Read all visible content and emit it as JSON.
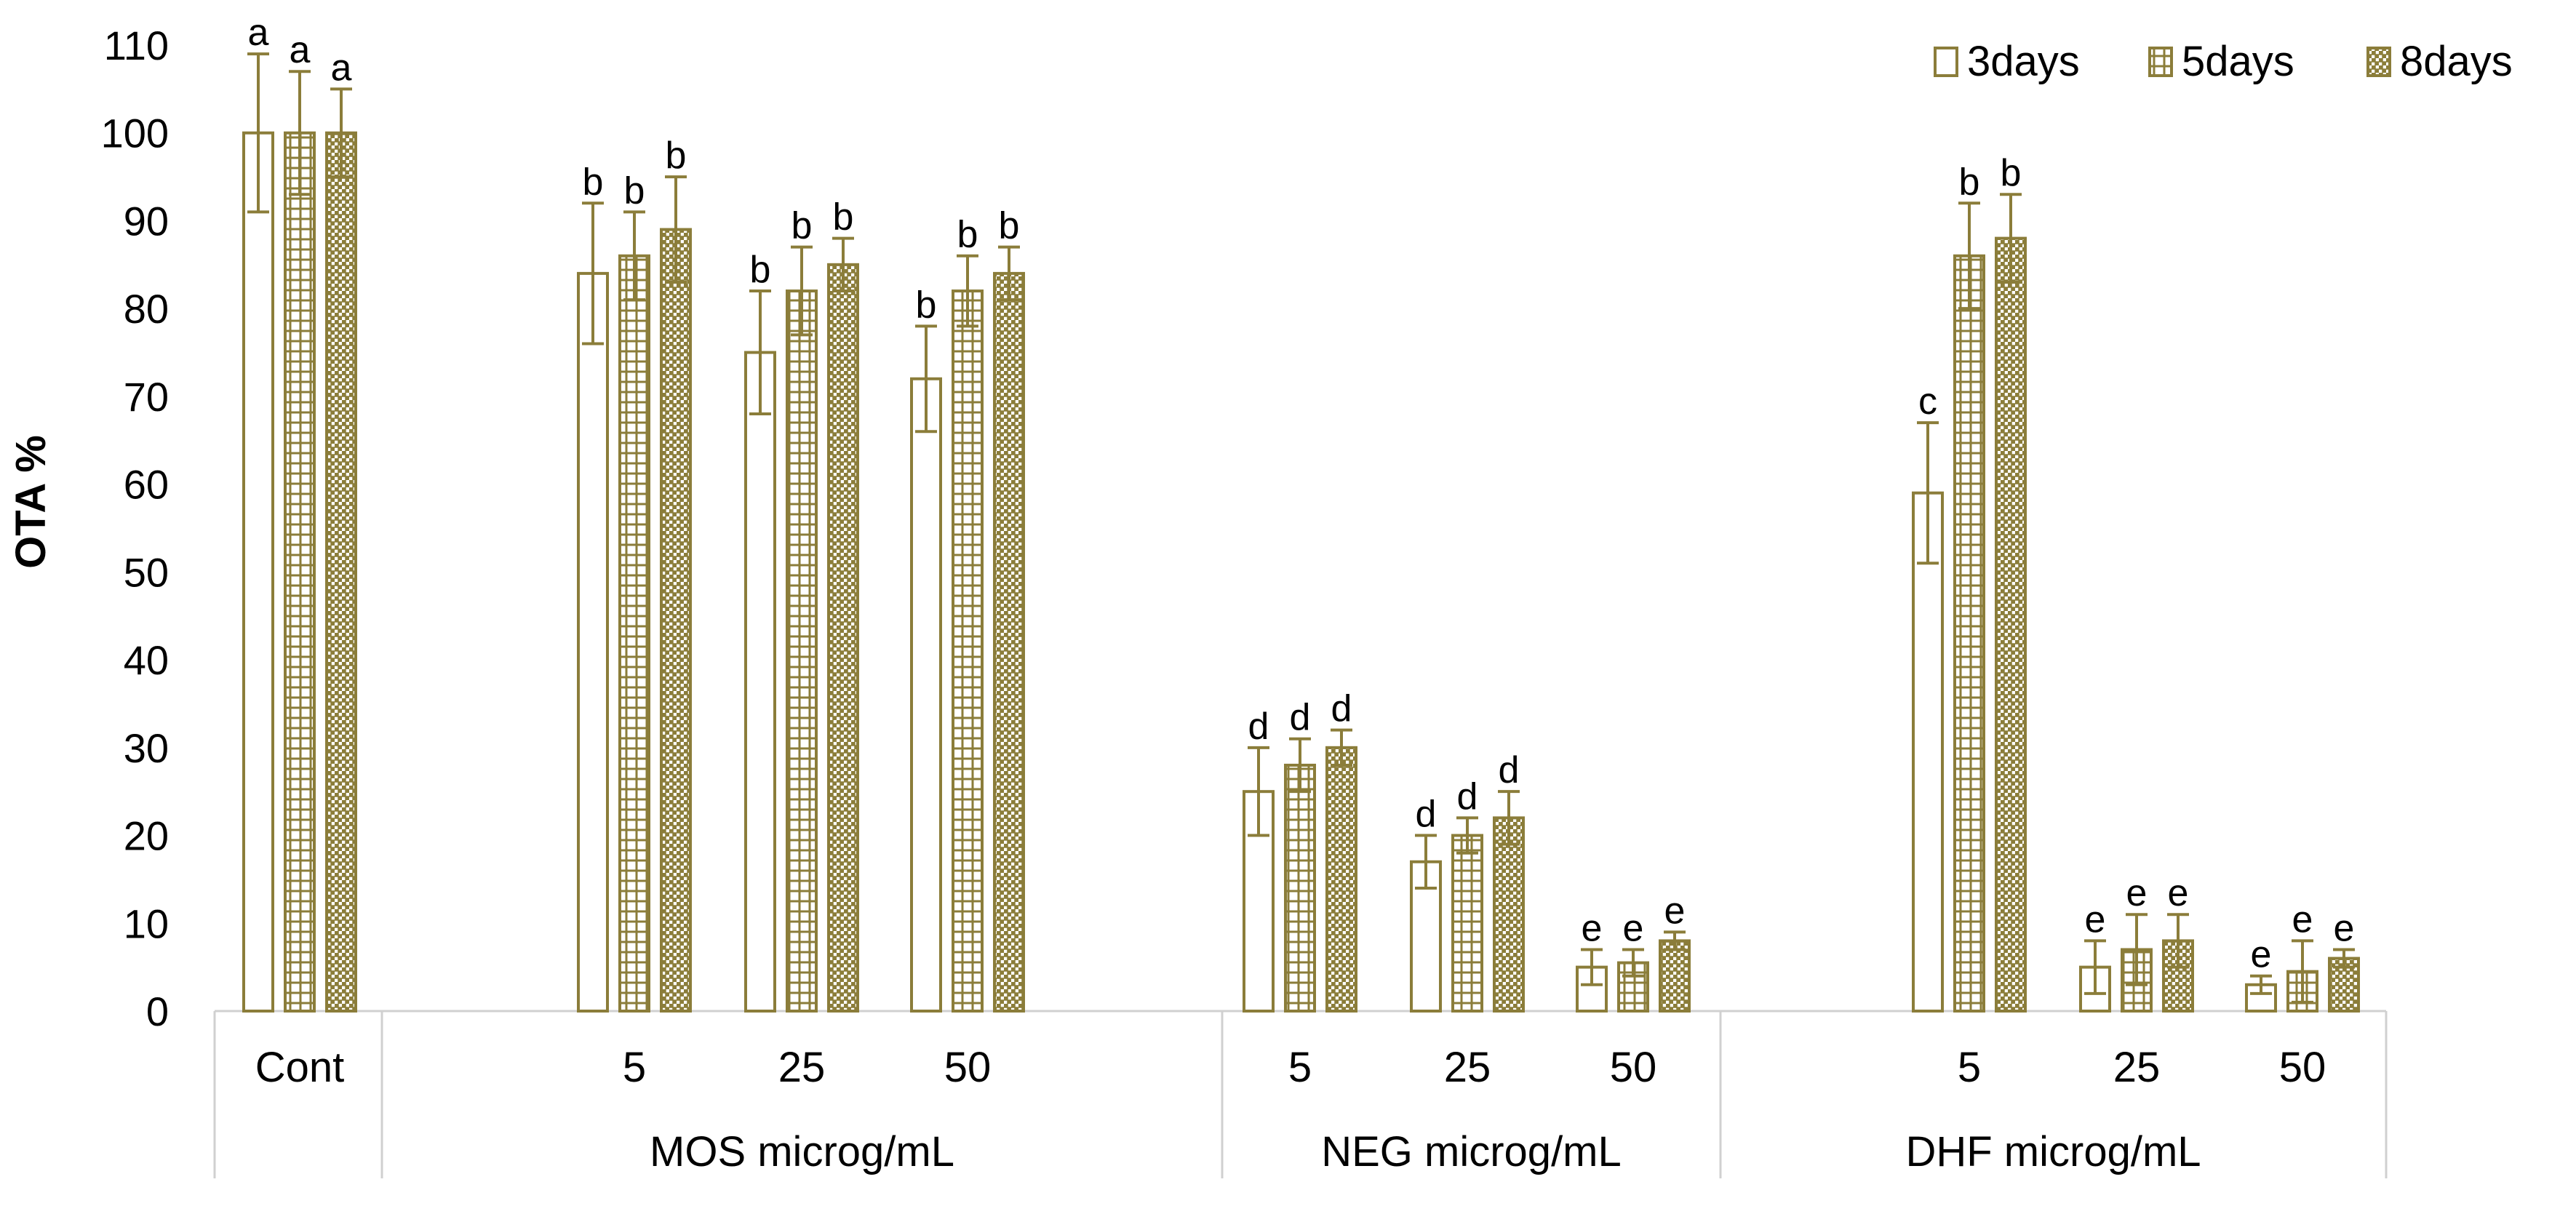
{
  "colors": {
    "bar": "#8b7d3a",
    "axis": "#d0d0d0",
    "text": "#000000",
    "background": "#ffffff"
  },
  "chart_data": {
    "type": "bar",
    "ylabel": "OTA %",
    "xlabel": "",
    "ylim": [
      0,
      110
    ],
    "yticks": [
      0,
      10,
      20,
      30,
      40,
      50,
      60,
      70,
      80,
      90,
      100,
      110
    ],
    "grid": false,
    "legend_position": "top-right",
    "groups": [
      {
        "label": "",
        "categories": [
          "Cont"
        ]
      },
      {
        "label": "MOS microg/mL",
        "categories": [
          "5",
          "25",
          "50"
        ]
      },
      {
        "label": "NEG microg/mL",
        "categories": [
          "5",
          "25",
          "50"
        ]
      },
      {
        "label": "DHF microg/mL",
        "categories": [
          "5",
          "25",
          "50"
        ]
      }
    ],
    "series": [
      {
        "name": "3days",
        "pattern": "hollow",
        "values": [
          100,
          84,
          75,
          72,
          25,
          17,
          5,
          59,
          5,
          3
        ],
        "errors": [
          9,
          8,
          7,
          6,
          5,
          3,
          2,
          8,
          3,
          1
        ],
        "letters": [
          "a",
          "b",
          "b",
          "b",
          "d",
          "d",
          "e",
          "c",
          "e",
          "e"
        ]
      },
      {
        "name": "5days",
        "pattern": "grid",
        "values": [
          100,
          86,
          82,
          82,
          28,
          20,
          5.5,
          86,
          7,
          4.5
        ],
        "errors": [
          7,
          5,
          5,
          4,
          3,
          2,
          1.5,
          6,
          4,
          3.5
        ],
        "letters": [
          "a",
          "b",
          "b",
          "b",
          "d",
          "d",
          "e",
          "b",
          "e",
          "e"
        ]
      },
      {
        "name": "8days",
        "pattern": "dense",
        "values": [
          100,
          89,
          85,
          84,
          30,
          22,
          8,
          88,
          8,
          6
        ],
        "errors": [
          5,
          6,
          3,
          3,
          2,
          3,
          1,
          5,
          3,
          1
        ],
        "letters": [
          "a",
          "b",
          "b",
          "b",
          "d",
          "d",
          "e",
          "b",
          "e",
          "e"
        ]
      }
    ]
  }
}
